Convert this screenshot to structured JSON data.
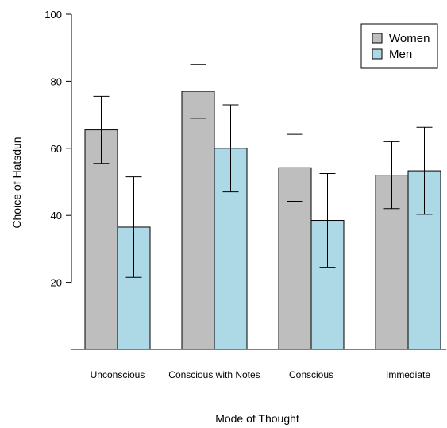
{
  "chart_data": {
    "type": "bar",
    "categories": [
      "Unconscious",
      "Conscious with Notes",
      "Conscious",
      "Immediate"
    ],
    "series": [
      {
        "name": "Women",
        "color": "#bebebe",
        "values": [
          65.5,
          77,
          54.2,
          52
        ],
        "error_low": [
          55.5,
          69,
          44.2,
          42
        ],
        "error_high": [
          75.5,
          85,
          64.2,
          62
        ]
      },
      {
        "name": "Men",
        "color": "#add8e6",
        "values": [
          36.5,
          60,
          38.5,
          53.3
        ],
        "error_low": [
          21.5,
          47,
          24.5,
          40.3
        ],
        "error_high": [
          51.5,
          73,
          52.5,
          66.3
        ]
      }
    ],
    "xlabel": "Mode of Thought",
    "ylabel": "Choice of Hatsdun",
    "yticks": [
      "20",
      "40",
      "60",
      "80",
      "100"
    ],
    "ylim": [
      0,
      100
    ],
    "legend_position": "top-right",
    "grid": false
  }
}
